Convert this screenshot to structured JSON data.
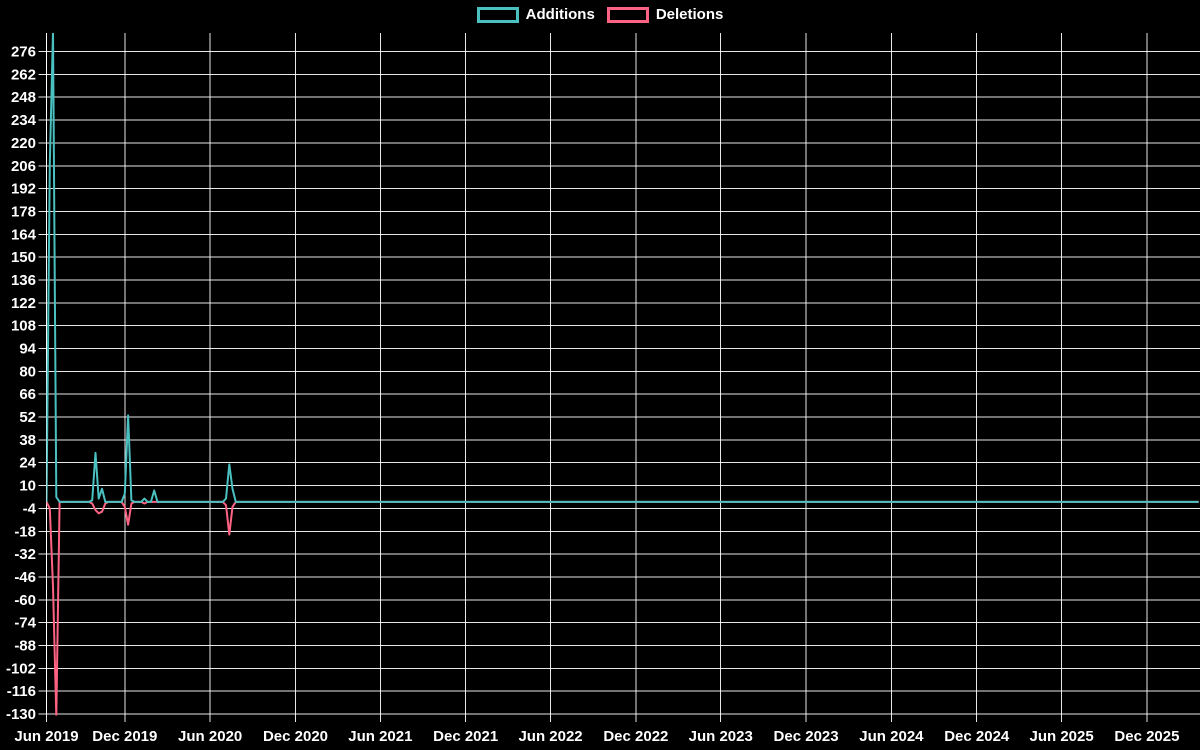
{
  "chart_data": {
    "type": "line",
    "title": "",
    "legend_position": "top",
    "grid": true,
    "background_color": "#000000",
    "text_color": "#ffffff",
    "gridline_color": "#ffffff",
    "series": [
      {
        "name": "Additions",
        "color": "#4bc0c0"
      },
      {
        "name": "Deletions",
        "color": "#ff6384"
      }
    ],
    "y_axis": {
      "min": -130,
      "max": 276,
      "step": 14
    },
    "x_axis": {
      "ticks": [
        {
          "label": "Jun 2019",
          "date": "2019-06-01"
        },
        {
          "label": "Dec 2019",
          "date": "2019-12-01"
        },
        {
          "label": "Jun 2020",
          "date": "2020-06-01"
        },
        {
          "label": "Dec 2020",
          "date": "2020-12-01"
        },
        {
          "label": "Jun 2021",
          "date": "2021-06-01"
        },
        {
          "label": "Dec 2021",
          "date": "2021-12-01"
        },
        {
          "label": "Jun 2022",
          "date": "2022-06-01"
        },
        {
          "label": "Dec 2022",
          "date": "2022-12-01"
        },
        {
          "label": "Jun 2023",
          "date": "2023-06-01"
        },
        {
          "label": "Dec 2023",
          "date": "2023-12-01"
        },
        {
          "label": "Jun 2024",
          "date": "2024-06-01"
        },
        {
          "label": "Dec 2024",
          "date": "2024-12-01"
        },
        {
          "label": "Jun 2025",
          "date": "2025-06-01"
        },
        {
          "label": "Dec 2025",
          "date": "2025-12-01"
        }
      ]
    },
    "week_start": "2019-06-16",
    "weeks_total": 354,
    "weekly_nonzero": [
      {
        "date": "2019-06-23",
        "additions": 207,
        "deletions": -4
      },
      {
        "date": "2019-06-30",
        "additions": 288,
        "deletions": -52
      },
      {
        "date": "2019-07-07",
        "additions": 3,
        "deletions": -131
      },
      {
        "date": "2019-09-22",
        "additions": 1,
        "deletions": -1
      },
      {
        "date": "2019-09-29",
        "additions": 30,
        "deletions": -5
      },
      {
        "date": "2019-10-06",
        "additions": 2,
        "deletions": -7
      },
      {
        "date": "2019-10-13",
        "additions": 8,
        "deletions": -6
      },
      {
        "date": "2019-10-20",
        "additions": 0,
        "deletions": -1
      },
      {
        "date": "2019-12-01",
        "additions": 5,
        "deletions": -3
      },
      {
        "date": "2019-12-08",
        "additions": 53,
        "deletions": -14
      },
      {
        "date": "2019-12-15",
        "additions": 1,
        "deletions": -1
      },
      {
        "date": "2020-01-12",
        "additions": 2,
        "deletions": -1
      },
      {
        "date": "2020-02-02",
        "additions": 7,
        "deletions": 0
      },
      {
        "date": "2020-07-05",
        "additions": 2,
        "deletions": -2
      },
      {
        "date": "2020-07-12",
        "additions": 23,
        "deletions": -20
      },
      {
        "date": "2020-07-19",
        "additions": 8,
        "deletions": -3
      }
    ],
    "note": "All other weeks from 2019-06-16 through end of axis are 0 additions / 0 deletions"
  }
}
